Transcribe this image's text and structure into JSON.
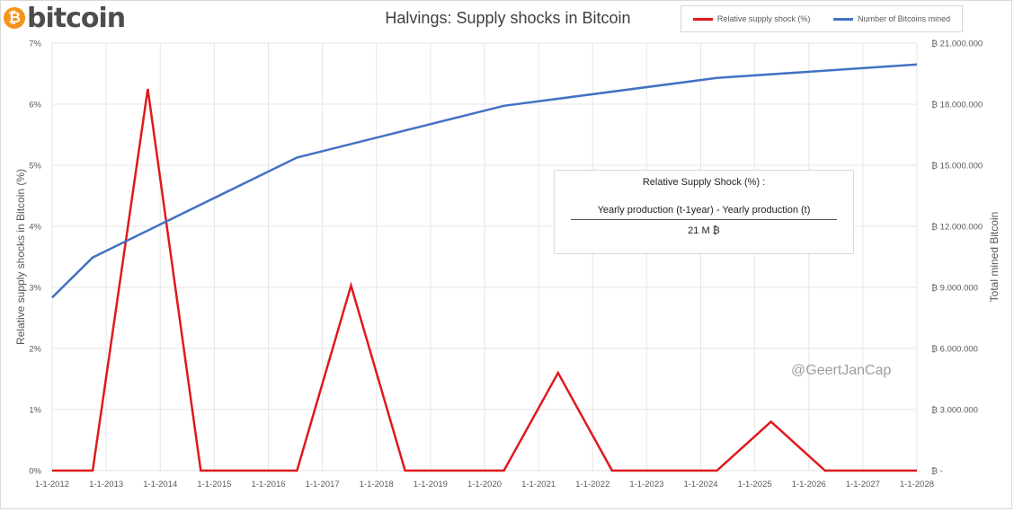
{
  "logo": {
    "symbol": "₿",
    "text": "bitcoin"
  },
  "chart_data": {
    "type": "line",
    "title": "Halvings: Supply shocks in Bitcoin",
    "ylabel": "Relative supply shocks in Bitcoin (%)",
    "y2label": "Total mined Bitcoin",
    "x_ticks": [
      "1-1-2012",
      "1-1-2013",
      "1-1-2014",
      "1-1-2015",
      "1-1-2016",
      "1-1-2017",
      "1-1-2018",
      "1-1-2019",
      "1-1-2020",
      "1-1-2021",
      "1-1-2022",
      "1-1-2023",
      "1-1-2024",
      "1-1-2025",
      "1-1-2026",
      "1-1-2027",
      "1-1-2028"
    ],
    "y_ticks": [
      "0%",
      "1%",
      "2%",
      "3%",
      "4%",
      "5%",
      "6%",
      "7%"
    ],
    "y2_ticks": [
      "₿ -",
      "₿ 3.000.000",
      "₿ 6.000.000",
      "₿ 9.000.000",
      "₿ 12.000.000",
      "₿ 15.000.000",
      "₿ 18.000.000",
      "₿ 21.000.000"
    ],
    "ylim": [
      0,
      7
    ],
    "y2lim": [
      0,
      21000000
    ],
    "xlim": [
      2012.0,
      2028.0
    ],
    "grid": true,
    "legend_position": "top-right",
    "series": [
      {
        "name": "Relative supply shock (%)",
        "color": "#e0191b",
        "axis": "left",
        "x": [
          2012.0,
          2012.75,
          2013.77,
          2014.75,
          2016.53,
          2017.53,
          2018.53,
          2020.36,
          2021.36,
          2022.36,
          2024.3,
          2025.3,
          2026.3,
          2028.0
        ],
        "values": [
          0,
          0,
          6.25,
          0,
          0,
          3.03,
          0,
          0,
          1.6,
          0,
          0,
          0.8,
          0,
          0
        ]
      },
      {
        "name": "Number of Bitcoins mined",
        "color": "#4472c4",
        "axis": "right",
        "x": [
          2012.0,
          2012.75,
          2016.53,
          2020.36,
          2024.3,
          2028.0
        ],
        "values": [
          8500000,
          10470000,
          15380000,
          17920000,
          19290000,
          19950000
        ]
      }
    ]
  },
  "formula": {
    "title": "Relative Supply Shock (%) :",
    "numerator": "Yearly production (t-1year)  - Yearly production (t)",
    "denominator": "21 M ₿"
  },
  "watermark": "@GeertJanCap"
}
